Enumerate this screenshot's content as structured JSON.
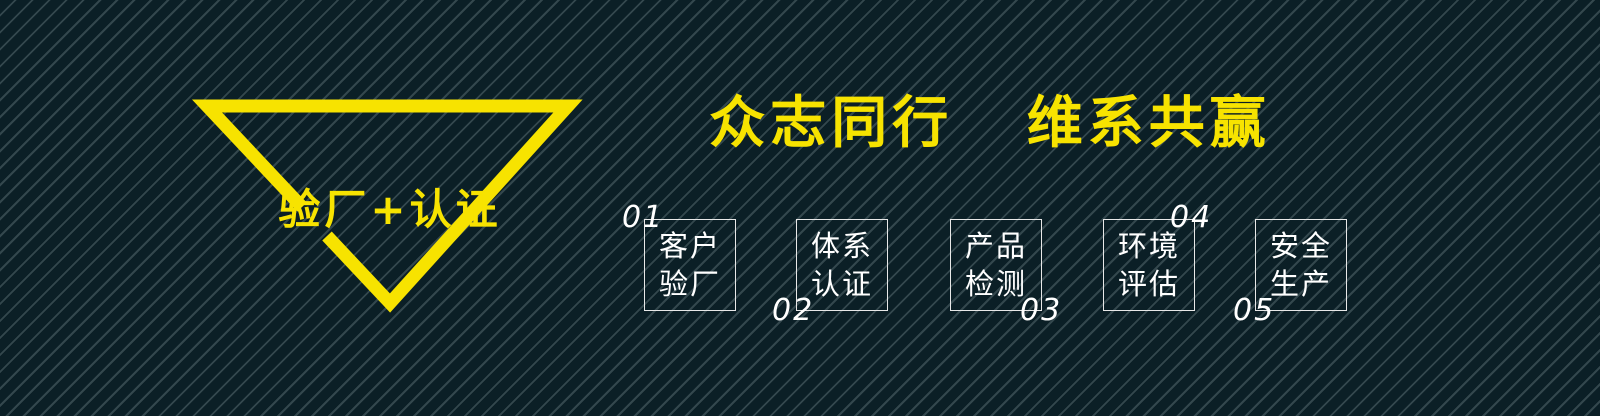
{
  "badge": {
    "label": "验厂+认证",
    "color": "#f7e300"
  },
  "headline": "众志同行   维系共赢",
  "items": [
    {
      "number": "01",
      "label": "客户验厂"
    },
    {
      "number": "02",
      "label": "体系认证"
    },
    {
      "number": "03",
      "label": "产品检测"
    },
    {
      "number": "04",
      "label": "环境评估"
    },
    {
      "number": "05",
      "label": "安全生产"
    }
  ],
  "colors": {
    "background": "#0b1f26",
    "stripe": "#33474d",
    "accent": "#f7e300",
    "text": "#ffffff"
  }
}
